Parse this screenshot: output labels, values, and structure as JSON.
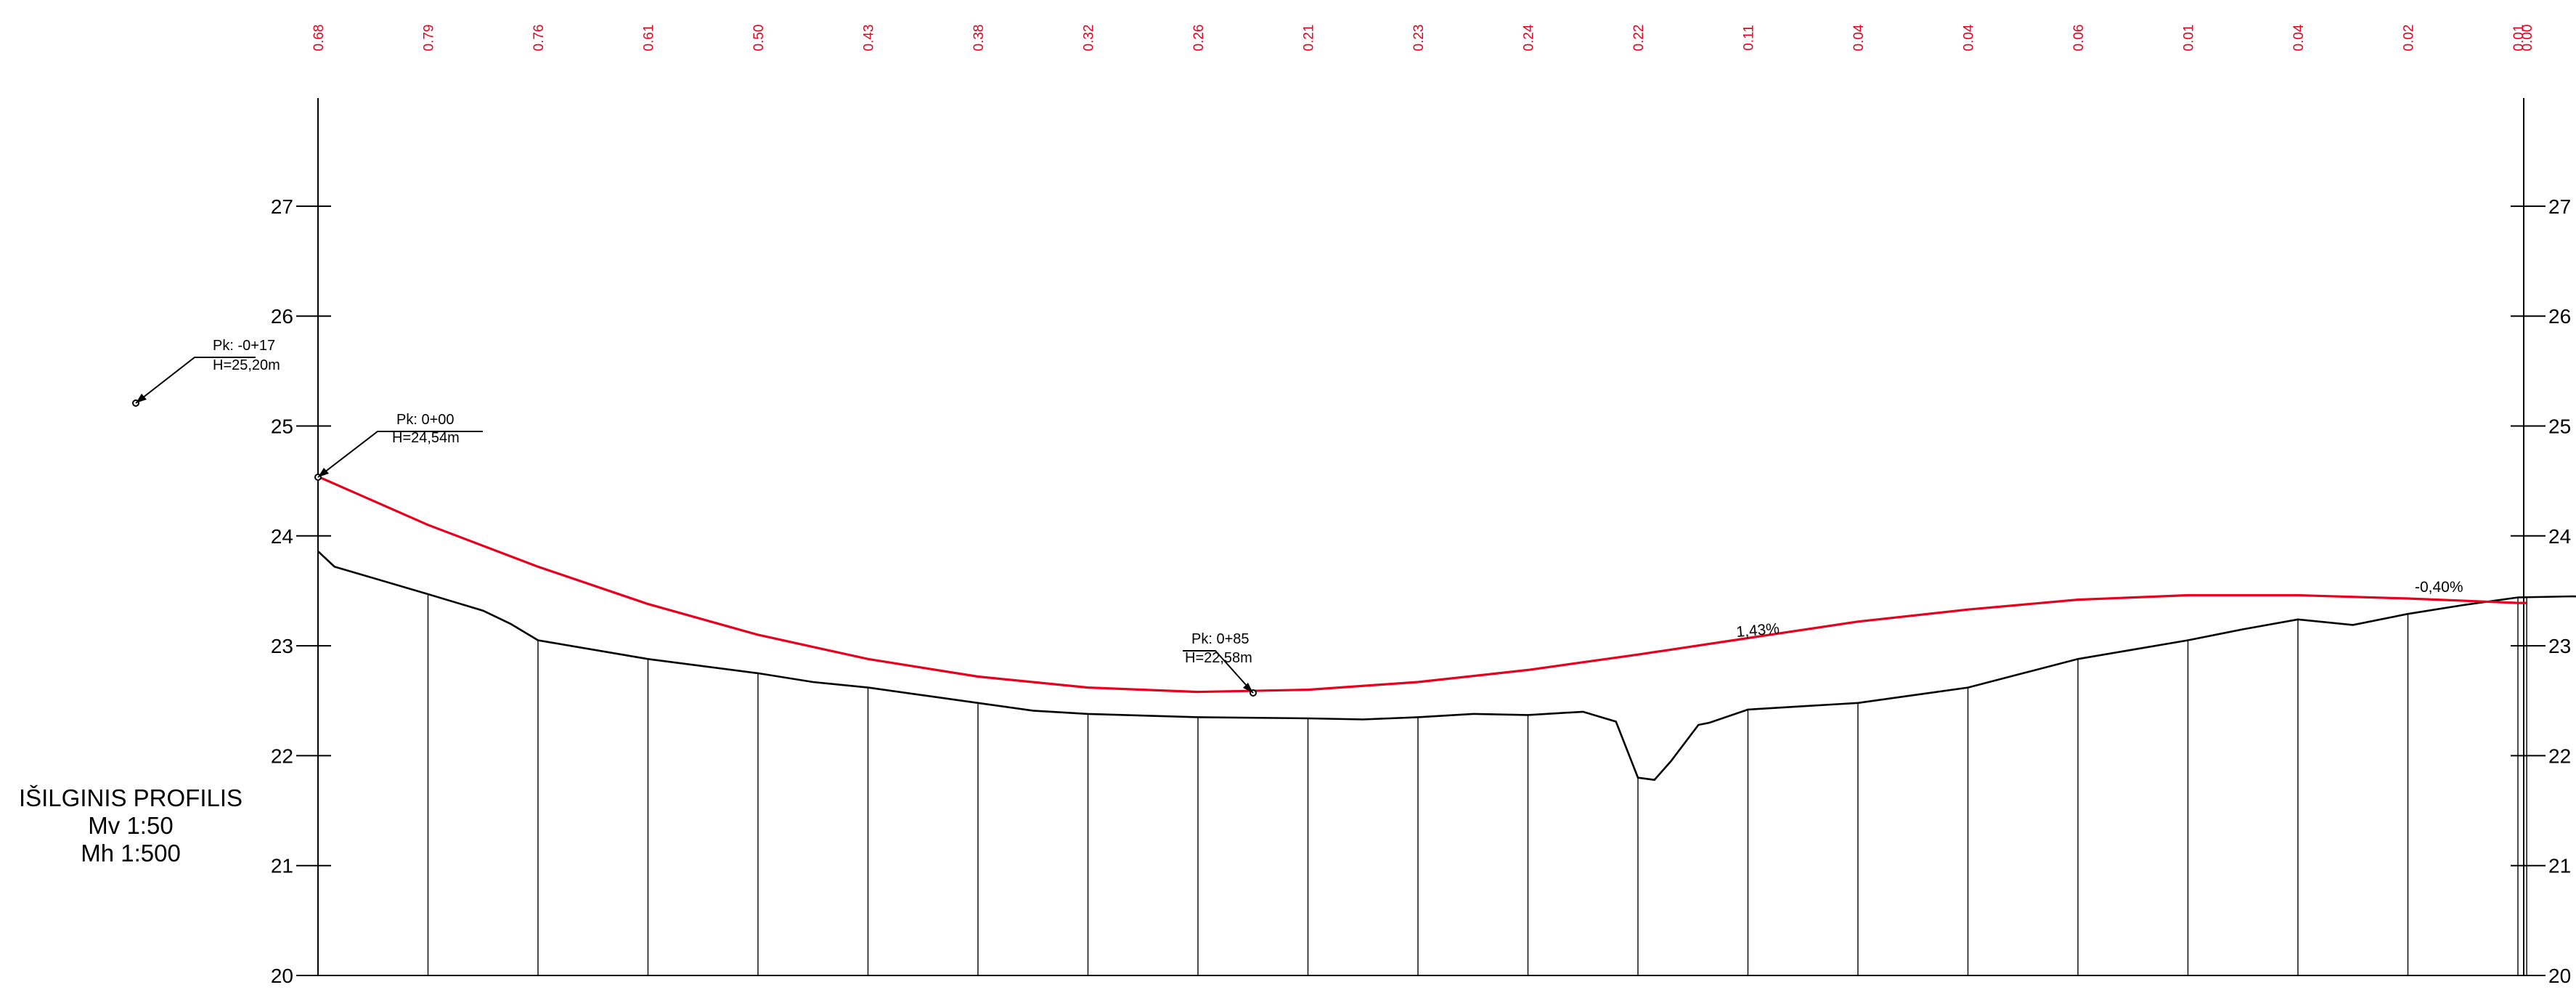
{
  "title": {
    "name": "IŠILGINIS PROFILIS",
    "vertical_scale": "Mv 1:50",
    "horizontal_scale": "Mh 1:500"
  },
  "colors": {
    "design_line": "#e8001c",
    "ground_line": "#000000",
    "difference_text": "#e8001c"
  },
  "elevation_axis": {
    "min": 20,
    "max": 27.9,
    "tick_labels": [
      "20",
      "21",
      "22",
      "23",
      "24",
      "25",
      "26",
      "27"
    ]
  },
  "station_differences": [
    "0.68",
    "0.79",
    "0.76",
    "0.61",
    "0.50",
    "0.43",
    "0.38",
    "0.32",
    "0.26",
    "0.21",
    "0.23",
    "0.24",
    "0.22",
    "0.11",
    "0.04",
    "0.04",
    "0.06",
    "0.01",
    "0.04",
    "0.02",
    "0.01",
    "0.00"
  ],
  "annotations": [
    {
      "station": "Pk: -0+17",
      "elevation": "H=25,20m"
    },
    {
      "station": "Pk: 0+00",
      "elevation": "H=24,54m"
    },
    {
      "station": "Pk: 0+85",
      "elevation": "H=22,58m"
    }
  ],
  "grade_labels": [
    "1,43%",
    "-0,40%"
  ],
  "chart_data": {
    "type": "line",
    "x_unit": "stations (10 m spacing)",
    "ylim": [
      20,
      27.9
    ],
    "series": [
      {
        "points": [
          [
            0,
            24.54
          ],
          [
            1,
            24.1
          ],
          [
            2,
            23.72
          ],
          [
            3,
            23.38
          ],
          [
            4,
            23.1
          ],
          [
            5,
            22.88
          ],
          [
            6,
            22.72
          ],
          [
            7,
            22.62
          ],
          [
            8,
            22.58
          ],
          [
            9,
            22.6
          ],
          [
            10,
            22.67
          ],
          [
            11,
            22.78
          ],
          [
            12,
            22.92
          ],
          [
            13,
            23.07
          ],
          [
            14,
            23.22
          ],
          [
            15,
            23.33
          ],
          [
            16,
            23.42
          ],
          [
            17,
            23.46
          ],
          [
            18,
            23.46
          ],
          [
            19,
            23.43
          ],
          [
            20,
            23.39
          ],
          [
            20.08,
            23.39
          ]
        ]
      },
      {
        "points": [
          [
            0,
            23.86
          ],
          [
            0.15,
            23.72
          ],
          [
            1,
            23.47
          ],
          [
            1.5,
            23.32
          ],
          [
            1.75,
            23.2
          ],
          [
            2,
            23.05
          ],
          [
            3,
            22.88
          ],
          [
            4,
            22.75
          ],
          [
            4.5,
            22.67
          ],
          [
            5,
            22.62
          ],
          [
            5.5,
            22.55
          ],
          [
            6,
            22.48
          ],
          [
            6.5,
            22.41
          ],
          [
            7,
            22.38
          ],
          [
            8,
            22.35
          ],
          [
            9,
            22.34
          ],
          [
            9.5,
            22.33
          ],
          [
            10,
            22.35
          ],
          [
            10.5,
            22.38
          ],
          [
            11,
            22.37
          ],
          [
            11.5,
            22.4
          ],
          [
            11.8,
            22.31
          ],
          [
            12,
            21.8
          ],
          [
            12.15,
            21.78
          ],
          [
            12.3,
            21.95
          ],
          [
            12.55,
            22.28
          ],
          [
            12.65,
            22.3
          ],
          [
            13,
            22.42
          ],
          [
            13.5,
            22.45
          ],
          [
            14,
            22.48
          ],
          [
            14.5,
            22.55
          ],
          [
            15,
            22.62
          ],
          [
            15.5,
            22.75
          ],
          [
            16,
            22.88
          ],
          [
            17,
            23.05
          ],
          [
            17.5,
            23.15
          ],
          [
            18,
            23.24
          ],
          [
            18.5,
            23.19
          ],
          [
            19,
            23.29
          ],
          [
            19.5,
            23.37
          ],
          [
            20,
            23.44
          ],
          [
            20.5,
            23.45
          ],
          [
            21,
            23.43
          ],
          [
            22,
            23.44
          ],
          [
            23,
            23.42
          ],
          [
            24,
            23.38
          ],
          [
            24.25,
            23.4
          ]
        ]
      }
    ]
  }
}
